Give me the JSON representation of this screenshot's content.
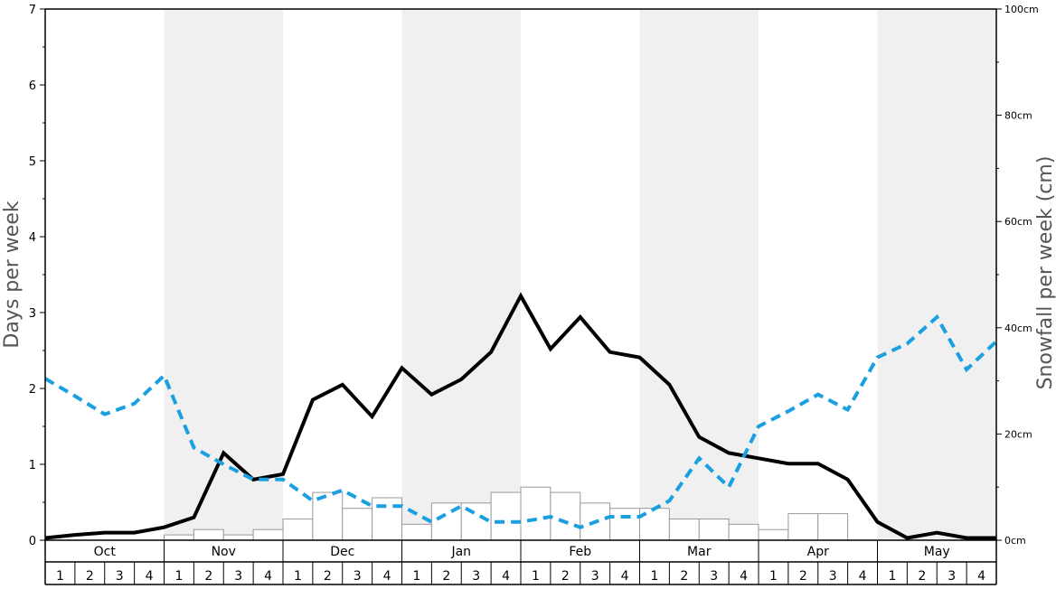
{
  "chart_data": {
    "type": "bar+line",
    "months": [
      "Oct",
      "Nov",
      "Dec",
      "Jan",
      "Feb",
      "Mar",
      "Apr",
      "May"
    ],
    "week_labels": [
      "1",
      "2",
      "3",
      "4"
    ],
    "ylabel_left": "Days per week",
    "ylabel_right": "Snowfall per week (cm)",
    "ylim_left": [
      0,
      7
    ],
    "yticks_left": [
      "0",
      "1",
      "2",
      "3",
      "4",
      "5",
      "6",
      "7"
    ],
    "ylim_right": [
      0,
      100
    ],
    "yticks_right": [
      "0cm",
      "20cm",
      "40cm",
      "60cm",
      "80cm",
      "100cm"
    ],
    "series": [
      {
        "type": "bar",
        "axis": "right",
        "values": [
          0,
          0,
          0,
          0,
          1,
          2,
          1,
          2,
          4,
          9,
          6,
          8,
          3,
          7,
          7,
          9,
          10,
          9,
          7,
          6,
          6,
          4,
          4,
          3,
          2,
          5,
          5,
          0,
          0,
          0,
          0,
          0
        ],
        "fill": "#ffffff",
        "stroke": "#999999"
      },
      {
        "type": "line",
        "axis": "left",
        "style": "solid",
        "color": "#000000",
        "values": [
          0.03,
          0.07,
          0.1,
          0.1,
          0.17,
          0.3,
          1.15,
          0.8,
          0.87,
          1.85,
          2.05,
          1.63,
          2.27,
          1.92,
          2.12,
          2.48,
          3.22,
          2.52,
          2.94,
          2.48,
          2.41,
          2.05,
          1.36,
          1.15,
          1.08,
          1.01,
          1.01,
          0.8,
          0.24,
          0.03,
          0.1,
          0.03,
          0.03
        ]
      },
      {
        "type": "line",
        "axis": "left",
        "style": "dashed",
        "color": "#1aa0e0",
        "values": [
          2.13,
          1.9,
          1.66,
          1.8,
          2.17,
          1.22,
          1.0,
          0.8,
          0.8,
          0.52,
          0.66,
          0.45,
          0.45,
          0.24,
          0.45,
          0.24,
          0.24,
          0.31,
          0.17,
          0.31,
          0.31,
          0.52,
          1.08,
          0.7,
          1.5,
          1.7,
          1.92,
          1.72,
          2.41,
          2.59,
          2.94,
          2.25,
          2.62
        ]
      }
    ],
    "shaded_months": [
      "Nov",
      "Jan",
      "Mar",
      "May"
    ],
    "shade_color": "#f0f0f0",
    "grid": false,
    "legend": "none"
  }
}
